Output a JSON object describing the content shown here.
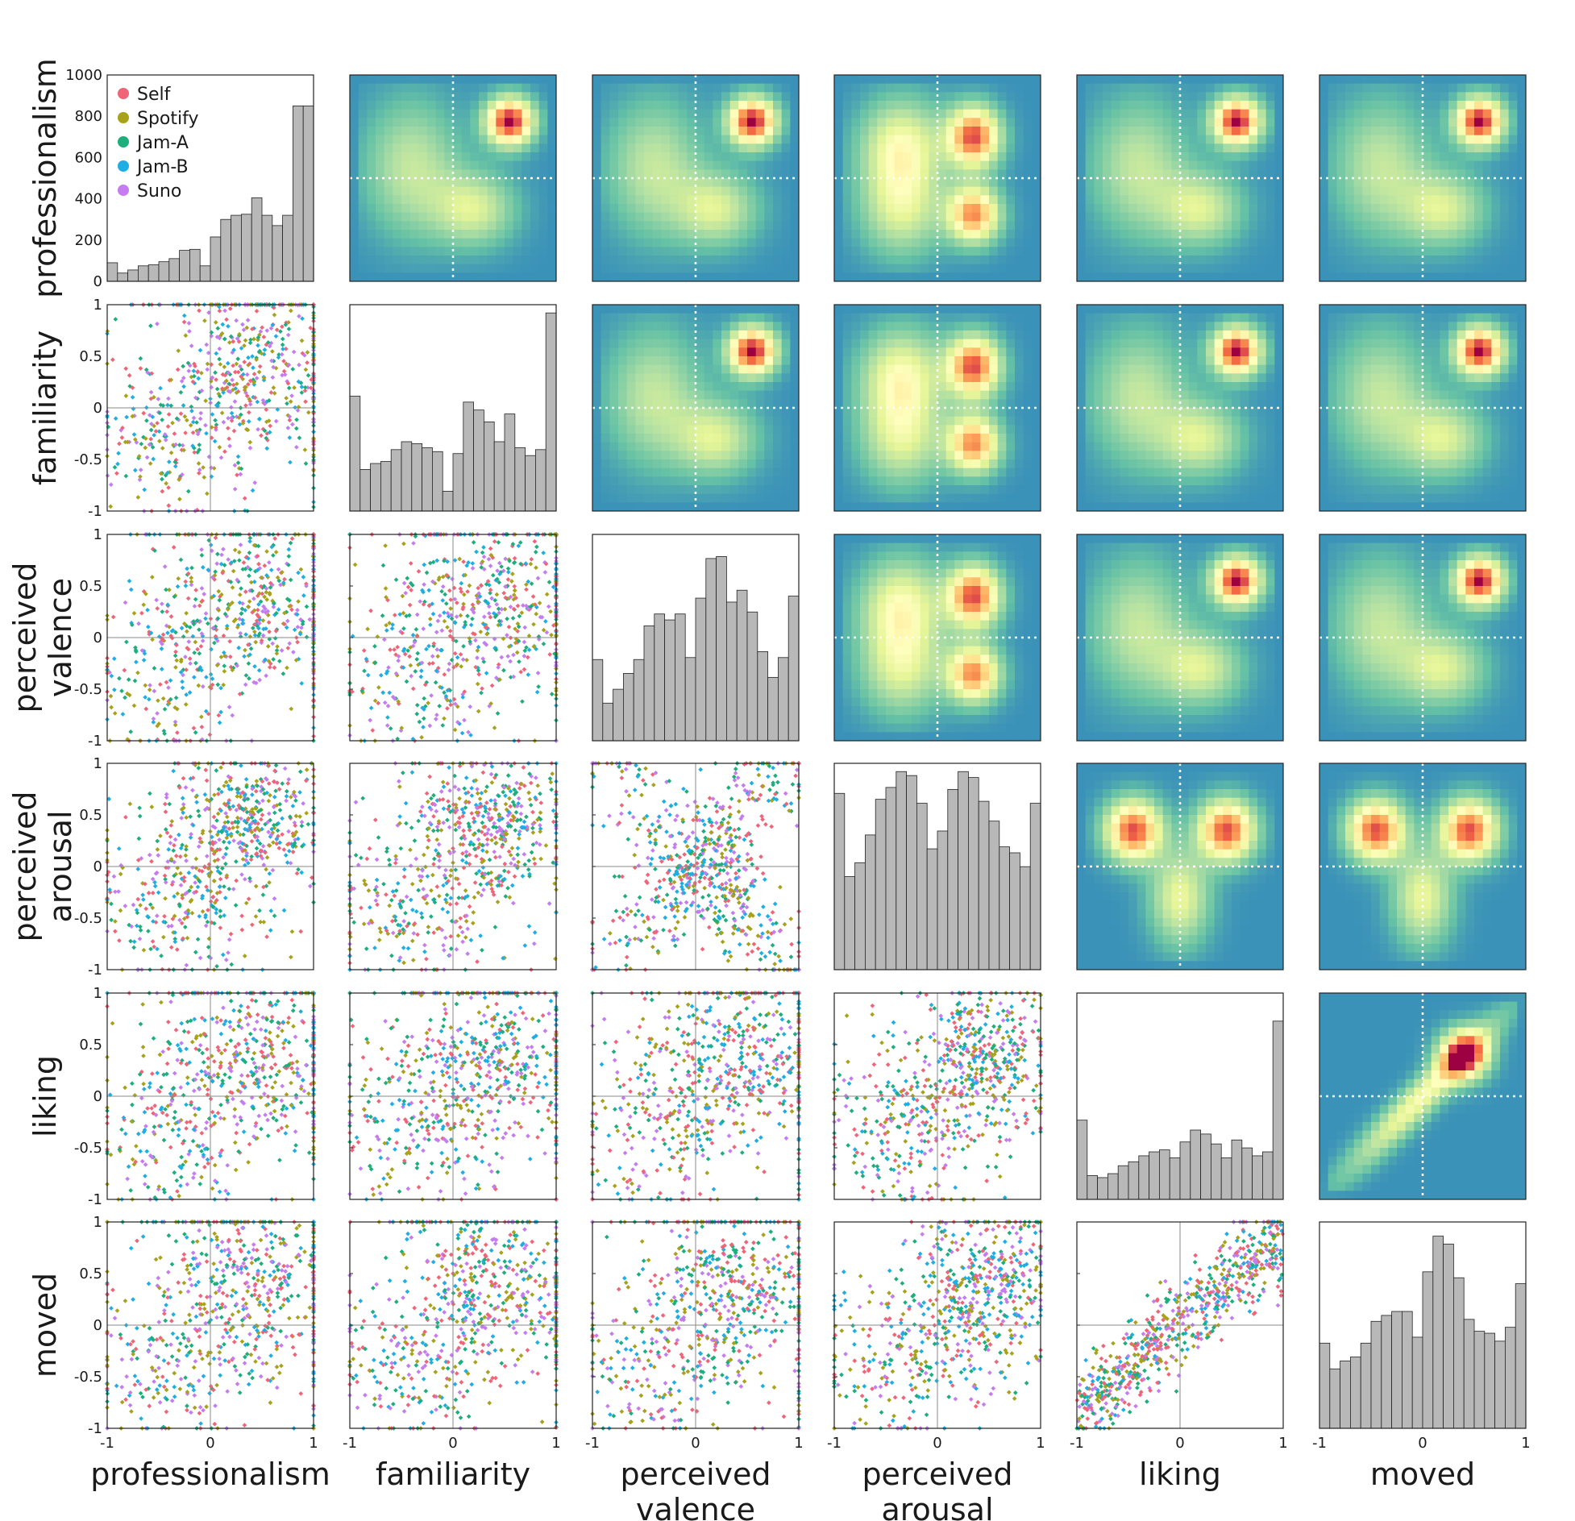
{
  "variables": [
    "professionalism",
    "familiarity",
    "perceived valence",
    "perceived arousal",
    "liking",
    "moved"
  ],
  "axis_labels": [
    [
      "professionalism"
    ],
    [
      "familiarity"
    ],
    [
      "perceived",
      "valence"
    ],
    [
      "perceived",
      "arousal"
    ],
    [
      "liking"
    ],
    [
      "moved"
    ]
  ],
  "ticks": {
    "scatter": [
      "-1",
      "-0.5",
      "0",
      "0.5",
      "1"
    ],
    "x_bottom": [
      "-1",
      "0",
      "1"
    ],
    "hist_first": [
      "0",
      "200",
      "400",
      "600",
      "800",
      "1000"
    ]
  },
  "legend": [
    {
      "name": "Self",
      "color": "#f06478"
    },
    {
      "name": "Spotify",
      "color": "#a8a21a"
    },
    {
      "name": "Jam-A",
      "color": "#1cae7c"
    },
    {
      "name": "Jam-B",
      "color": "#1eaee4"
    },
    {
      "name": "Suno",
      "color": "#c57cf0"
    }
  ],
  "colors": {
    "histogram_bar": "#b8b8b8",
    "density_colormap": "spectral",
    "reference_line": "#888888",
    "dotted_line": "#ffffff"
  },
  "chart_data": {
    "type": "scatter",
    "layout": "pair-plot matrix",
    "xlim": [
      -1,
      1
    ],
    "ylim": [
      -1,
      1
    ],
    "histograms": [
      {
        "variable": "professionalism",
        "ylim": [
          0,
          1000
        ],
        "bins": 20,
        "counts": [
          90,
          40,
          55,
          75,
          80,
          95,
          110,
          150,
          155,
          75,
          215,
          300,
          320,
          325,
          405,
          320,
          270,
          320,
          850,
          850
        ]
      },
      {
        "variable": "familiarity",
        "bins": 20,
        "relative_heights": [
          0.58,
          0.21,
          0.24,
          0.25,
          0.31,
          0.35,
          0.34,
          0.32,
          0.3,
          0.1,
          0.29,
          0.55,
          0.51,
          0.45,
          0.35,
          0.49,
          0.32,
          0.28,
          0.31,
          1.0
        ]
      },
      {
        "variable": "perceived valence",
        "bins": 20,
        "relative_heights": [
          0.41,
          0.19,
          0.26,
          0.34,
          0.41,
          0.58,
          0.64,
          0.61,
          0.64,
          0.42,
          0.72,
          0.92,
          0.93,
          0.7,
          0.76,
          0.65,
          0.45,
          0.32,
          0.42,
          0.73
        ]
      },
      {
        "variable": "perceived arousal",
        "bins": 20,
        "relative_heights": [
          0.89,
          0.47,
          0.54,
          0.68,
          0.86,
          0.92,
          1.0,
          0.98,
          0.84,
          0.61,
          0.7,
          0.91,
          1.0,
          0.97,
          0.85,
          0.75,
          0.62,
          0.59,
          0.52,
          0.84
        ]
      },
      {
        "variable": "liking",
        "bins": 20,
        "relative_heights": [
          0.4,
          0.12,
          0.11,
          0.13,
          0.17,
          0.19,
          0.22,
          0.24,
          0.25,
          0.21,
          0.29,
          0.35,
          0.33,
          0.28,
          0.21,
          0.3,
          0.26,
          0.22,
          0.24,
          0.9
        ]
      },
      {
        "variable": "moved",
        "bins": 20,
        "relative_heights": [
          0.43,
          0.3,
          0.34,
          0.36,
          0.43,
          0.54,
          0.57,
          0.59,
          0.59,
          0.46,
          0.79,
          0.97,
          0.93,
          0.76,
          0.55,
          0.49,
          0.48,
          0.44,
          0.51,
          0.73
        ]
      }
    ],
    "scatter_panels": "lower triangle: pairwise ratings coloured by source (Self, Spotify, Jam-A, Jam-B, Suno)",
    "density_panels": "upper triangle: 2D density heat maps, spectral colormap, dotted white lines at 0"
  }
}
